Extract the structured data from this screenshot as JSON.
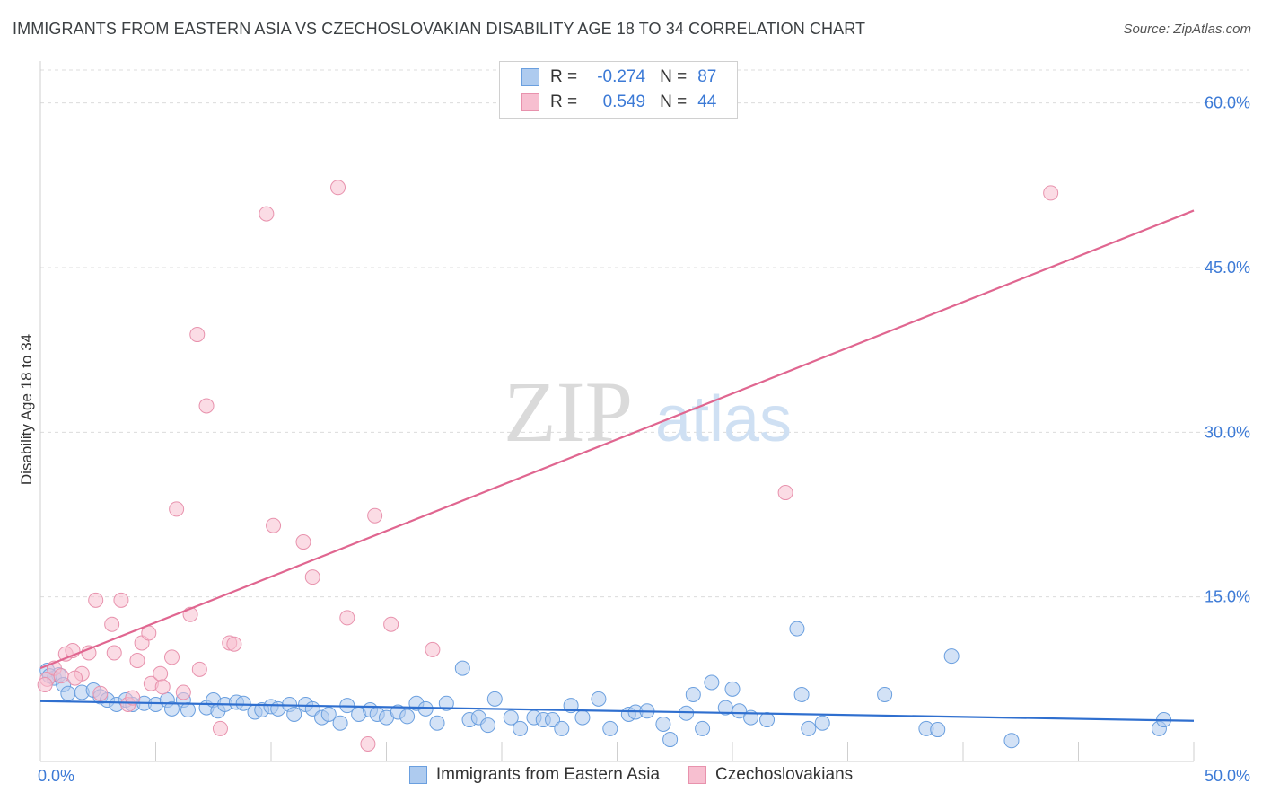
{
  "title": "IMMIGRANTS FROM EASTERN ASIA VS CZECHOSLOVAKIAN DISABILITY AGE 18 TO 34 CORRELATION CHART",
  "source": "Source: ZipAtlas.com",
  "watermark": {
    "zip": "ZIP",
    "atlas": "atlas"
  },
  "legend": {
    "r_label": "R =",
    "n_label": "N =",
    "series1": {
      "r": "-0.274",
      "n": "87"
    },
    "series2": {
      "r": "0.549",
      "n": "44"
    }
  },
  "colors": {
    "blue_fill": "#aecbef",
    "blue_stroke": "#6a9fdf",
    "blue_line": "#2f6fcf",
    "pink_fill": "#f7bfd0",
    "pink_stroke": "#e892ad",
    "pink_line": "#e06690",
    "tick_text": "#3c7ad6"
  },
  "chart_data": {
    "type": "scatter",
    "title": "IMMIGRANTS FROM EASTERN ASIA VS CZECHOSLOVAKIAN DISABILITY AGE 18 TO 34 CORRELATION CHART",
    "xlabel": "",
    "ylabel": "Disability Age 18 to 34",
    "xlim": [
      0,
      50
    ],
    "ylim": [
      0,
      63
    ],
    "x_tick_labels": [
      {
        "value": 0,
        "label": "0.0%"
      },
      {
        "value": 50,
        "label": "50.0%"
      }
    ],
    "y_tick_labels": [
      {
        "value": 15,
        "label": "15.0%"
      },
      {
        "value": 30,
        "label": "30.0%"
      },
      {
        "value": 45,
        "label": "45.0%"
      },
      {
        "value": 60,
        "label": "60.0%"
      }
    ],
    "series": [
      {
        "name": "Immigrants from Eastern Asia",
        "color": "blue",
        "trend": {
          "x": [
            0,
            50
          ],
          "y": [
            5.5,
            3.7
          ]
        },
        "points": [
          [
            0.3,
            8.3
          ],
          [
            0.6,
            7.6
          ],
          [
            0.8,
            7.9
          ],
          [
            1.0,
            7.0
          ],
          [
            1.2,
            6.2
          ],
          [
            1.8,
            6.3
          ],
          [
            2.3,
            6.5
          ],
          [
            2.6,
            5.9
          ],
          [
            2.9,
            5.6
          ],
          [
            3.3,
            5.2
          ],
          [
            3.7,
            5.6
          ],
          [
            4.0,
            5.2
          ],
          [
            4.5,
            5.3
          ],
          [
            5.0,
            5.2
          ],
          [
            5.5,
            5.6
          ],
          [
            5.7,
            4.8
          ],
          [
            6.2,
            5.6
          ],
          [
            6.4,
            4.7
          ],
          [
            7.2,
            4.9
          ],
          [
            7.5,
            5.6
          ],
          [
            7.7,
            4.6
          ],
          [
            8.0,
            5.2
          ],
          [
            8.5,
            5.4
          ],
          [
            8.8,
            5.3
          ],
          [
            9.3,
            4.5
          ],
          [
            9.6,
            4.7
          ],
          [
            10.0,
            5.0
          ],
          [
            10.3,
            4.8
          ],
          [
            10.8,
            5.2
          ],
          [
            11.0,
            4.3
          ],
          [
            11.5,
            5.2
          ],
          [
            11.8,
            4.8
          ],
          [
            12.2,
            4.0
          ],
          [
            12.5,
            4.3
          ],
          [
            13.0,
            3.5
          ],
          [
            13.3,
            5.1
          ],
          [
            13.8,
            4.3
          ],
          [
            14.3,
            4.7
          ],
          [
            14.6,
            4.3
          ],
          [
            15.0,
            4.0
          ],
          [
            15.5,
            4.5
          ],
          [
            15.9,
            4.1
          ],
          [
            16.3,
            5.3
          ],
          [
            16.7,
            4.8
          ],
          [
            17.2,
            3.5
          ],
          [
            17.6,
            5.3
          ],
          [
            18.3,
            8.5
          ],
          [
            18.6,
            3.8
          ],
          [
            19.0,
            4.0
          ],
          [
            19.4,
            3.3
          ],
          [
            19.7,
            5.7
          ],
          [
            20.4,
            4.0
          ],
          [
            20.8,
            3.0
          ],
          [
            21.4,
            4.0
          ],
          [
            21.8,
            3.8
          ],
          [
            22.2,
            3.8
          ],
          [
            22.6,
            3.0
          ],
          [
            23.0,
            5.1
          ],
          [
            23.5,
            4.0
          ],
          [
            24.2,
            5.7
          ],
          [
            24.7,
            3.0
          ],
          [
            25.5,
            4.3
          ],
          [
            25.8,
            4.5
          ],
          [
            26.3,
            4.6
          ],
          [
            27.0,
            3.4
          ],
          [
            27.3,
            2.0
          ],
          [
            28.0,
            4.4
          ],
          [
            28.3,
            6.1
          ],
          [
            28.7,
            3.0
          ],
          [
            29.1,
            7.2
          ],
          [
            29.7,
            4.9
          ],
          [
            30.0,
            6.6
          ],
          [
            30.3,
            4.6
          ],
          [
            30.8,
            4.0
          ],
          [
            31.5,
            3.8
          ],
          [
            32.8,
            12.1
          ],
          [
            33.0,
            6.1
          ],
          [
            33.3,
            3.0
          ],
          [
            33.9,
            3.5
          ],
          [
            36.6,
            6.1
          ],
          [
            38.4,
            3.0
          ],
          [
            38.9,
            2.9
          ],
          [
            39.5,
            9.6
          ],
          [
            42.1,
            1.9
          ],
          [
            48.5,
            3.0
          ],
          [
            48.7,
            3.8
          ],
          [
            0.4,
            7.8
          ]
        ]
      },
      {
        "name": "Czechoslovakians",
        "color": "pink",
        "trend": {
          "x": [
            0,
            50
          ],
          "y": [
            8.5,
            50.2
          ]
        },
        "points": [
          [
            0.3,
            7.5
          ],
          [
            0.6,
            8.5
          ],
          [
            0.9,
            7.8
          ],
          [
            1.1,
            9.8
          ],
          [
            1.4,
            10.1
          ],
          [
            1.8,
            8.0
          ],
          [
            2.1,
            9.9
          ],
          [
            2.4,
            14.7
          ],
          [
            2.6,
            6.2
          ],
          [
            3.1,
            12.5
          ],
          [
            3.2,
            9.9
          ],
          [
            3.5,
            14.7
          ],
          [
            3.8,
            5.2
          ],
          [
            4.0,
            5.8
          ],
          [
            4.2,
            9.2
          ],
          [
            4.4,
            10.8
          ],
          [
            4.7,
            11.7
          ],
          [
            4.8,
            7.1
          ],
          [
            5.2,
            8.0
          ],
          [
            5.3,
            6.8
          ],
          [
            5.7,
            9.5
          ],
          [
            5.9,
            23.0
          ],
          [
            6.2,
            6.3
          ],
          [
            6.5,
            13.4
          ],
          [
            6.8,
            38.9
          ],
          [
            6.9,
            8.4
          ],
          [
            7.2,
            32.4
          ],
          [
            7.8,
            3.0
          ],
          [
            8.2,
            10.8
          ],
          [
            8.4,
            10.7
          ],
          [
            9.8,
            49.9
          ],
          [
            10.1,
            21.5
          ],
          [
            11.4,
            20.0
          ],
          [
            11.8,
            16.8
          ],
          [
            12.9,
            52.3
          ],
          [
            13.3,
            13.1
          ],
          [
            14.2,
            1.6
          ],
          [
            14.5,
            22.4
          ],
          [
            15.2,
            12.5
          ],
          [
            17.0,
            10.2
          ],
          [
            32.3,
            24.5
          ],
          [
            43.8,
            51.8
          ],
          [
            0.2,
            7.0
          ],
          [
            1.5,
            7.6
          ]
        ]
      }
    ]
  }
}
